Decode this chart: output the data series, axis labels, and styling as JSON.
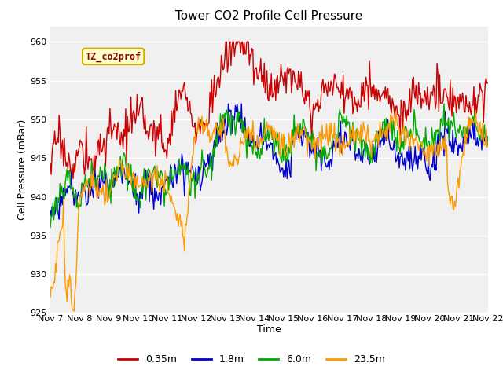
{
  "title": "Tower CO2 Profile Cell Pressure",
  "xlabel": "Time",
  "ylabel": "Cell Pressure (mBar)",
  "ylim": [
    925,
    962
  ],
  "yticks": [
    925,
    930,
    935,
    940,
    945,
    950,
    955,
    960
  ],
  "x_labels": [
    "Nov 7",
    "Nov 8",
    "Nov 9",
    "Nov 10",
    "Nov 11",
    "Nov 12",
    "Nov 13",
    "Nov 14",
    "Nov 15",
    "Nov 16",
    "Nov 17",
    "Nov 18",
    "Nov 19",
    "Nov 20",
    "Nov 21",
    "Nov 22"
  ],
  "legend_label": "TZ_co2prof",
  "series_labels": [
    "0.35m",
    "1.8m",
    "6.0m",
    "23.5m"
  ],
  "series_colors": [
    "#cc0000",
    "#0000cc",
    "#00aa00",
    "#ff9900"
  ],
  "bg_color": "#ffffff",
  "plot_bg_color": "#f0f0f0",
  "grid_color": "#ffffff",
  "n_points": 500,
  "seed": 17
}
